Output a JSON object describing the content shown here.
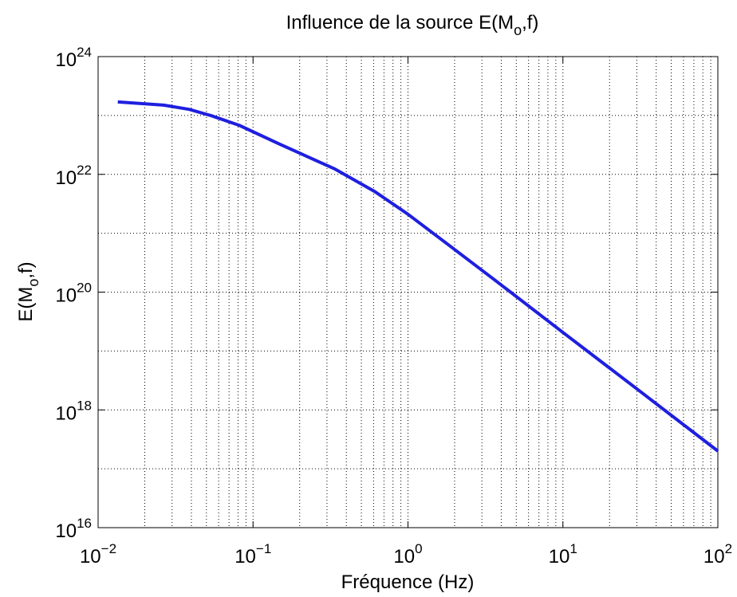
{
  "chart_data": {
    "type": "line",
    "title": {
      "text": "Influence de la source E(M",
      "sub": "o",
      "end": ",f)"
    },
    "xlabel": "Fréquence (Hz)",
    "ylabel": {
      "text": "E(M",
      "sub": "o",
      "end": ",f)"
    },
    "xscale": "log",
    "yscale": "log",
    "xlim": [
      0.01,
      100
    ],
    "ylim": [
      1e+16,
      1e+24
    ],
    "xticks": [
      {
        "value": 0.01,
        "label": "10",
        "exponent": "−2"
      },
      {
        "value": 0.1,
        "label": "10",
        "exponent": "−1"
      },
      {
        "value": 1,
        "label": "10",
        "exponent": "0"
      },
      {
        "value": 10,
        "label": "10",
        "exponent": "1"
      },
      {
        "value": 100,
        "label": "10",
        "exponent": "2"
      }
    ],
    "yticks": [
      {
        "value": 1e+16,
        "label": "10",
        "exponent": "16"
      },
      {
        "value": 1e+18,
        "label": "10",
        "exponent": "18"
      },
      {
        "value": 1e+20,
        "label": "10",
        "exponent": "20"
      },
      {
        "value": 1e+22,
        "label": "10",
        "exponent": "22"
      },
      {
        "value": 1e+24,
        "label": "10",
        "exponent": "24"
      }
    ],
    "grid": true,
    "minor_grid": true,
    "series": [
      {
        "color": "#1f1fe0",
        "x": [
          0.0134,
          0.0265,
          0.0387,
          0.0539,
          0.0815,
          0.147,
          0.338,
          0.611,
          1,
          1.79,
          3.64,
          10,
          30.5,
          100
        ],
        "values": [
          1.7e+23,
          1.5e+23,
          1.27e+23,
          9.9e+22,
          6.8e+22,
          3.3e+22,
          1.23e+22,
          5.1e+21,
          2.1e+21,
          6.6e+20,
          1.6e+20,
          2.07e+19,
          2.2e+18,
          2e+17
        ]
      }
    ]
  }
}
